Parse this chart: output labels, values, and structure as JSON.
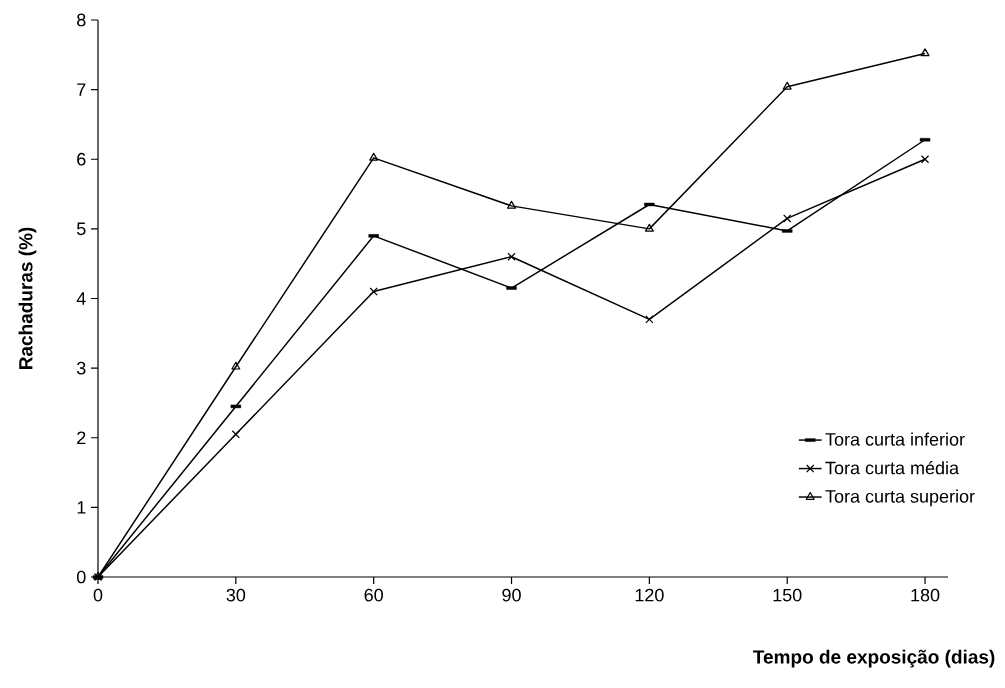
{
  "chart_data": {
    "type": "line",
    "xlabel": "Tempo de exposição (dias)",
    "ylabel": "Rachaduras (%)",
    "x": [
      0,
      30,
      60,
      90,
      120,
      150,
      180
    ],
    "series": [
      {
        "name": "Tora curta inferior",
        "color": "#000000",
        "marker": "square",
        "values": [
          0,
          2.45,
          4.9,
          4.15,
          5.35,
          4.97,
          6.28
        ]
      },
      {
        "name": "Tora curta média",
        "color": "#000000",
        "marker": "cross",
        "values": [
          0,
          2.05,
          4.1,
          4.6,
          3.7,
          5.15,
          6.0
        ]
      },
      {
        "name": "Tora curta superior",
        "color": "#000000",
        "marker": "triangle",
        "values": [
          0,
          3.02,
          6.02,
          5.33,
          5.0,
          7.04,
          7.52
        ]
      }
    ],
    "xlim": [
      0,
      185
    ],
    "xticks": [
      0,
      30,
      60,
      90,
      120,
      150,
      180
    ],
    "ylim": [
      0,
      8
    ],
    "yticks": [
      0,
      1,
      2,
      3,
      4,
      5,
      6,
      7,
      8
    ],
    "grid": false,
    "legend": "bottom right",
    "line_style": "solid"
  }
}
